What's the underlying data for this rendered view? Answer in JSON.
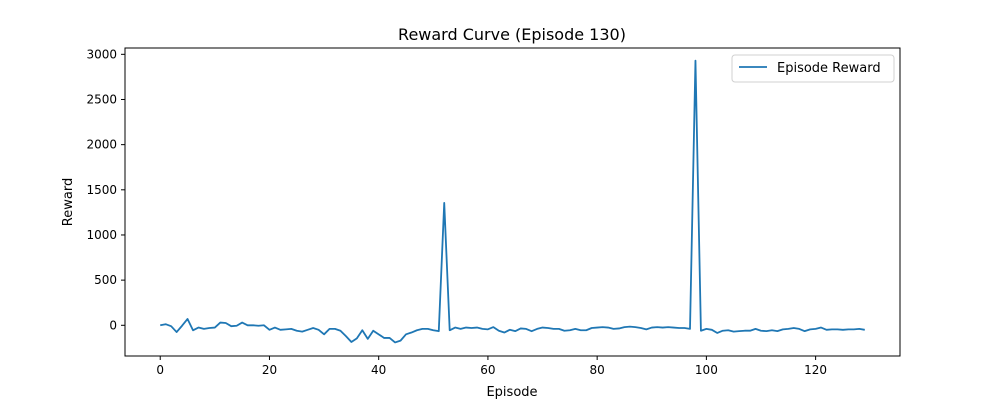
{
  "chart_data": {
    "type": "line",
    "title": "Reward Curve (Episode 130)",
    "xlabel": "Episode",
    "ylabel": "Reward",
    "xlim": [
      -6.45,
      135.45
    ],
    "ylim": [
      -340,
      3070
    ],
    "xticks": [
      0,
      20,
      40,
      60,
      80,
      100,
      120
    ],
    "yticks": [
      0,
      500,
      1000,
      1500,
      2000,
      2500,
      3000
    ],
    "grid": false,
    "legend_position": "top-right",
    "series": [
      {
        "name": "Episode Reward",
        "color": "#1f77b4",
        "x": [
          0,
          1,
          2,
          3,
          4,
          5,
          6,
          7,
          8,
          9,
          10,
          11,
          12,
          13,
          14,
          15,
          16,
          17,
          18,
          19,
          20,
          21,
          22,
          23,
          24,
          25,
          26,
          27,
          28,
          29,
          30,
          31,
          32,
          33,
          34,
          35,
          36,
          37,
          38,
          39,
          40,
          41,
          42,
          43,
          44,
          45,
          46,
          47,
          48,
          49,
          50,
          51,
          52,
          53,
          54,
          55,
          56,
          57,
          58,
          59,
          60,
          61,
          62,
          63,
          64,
          65,
          66,
          67,
          68,
          69,
          70,
          71,
          72,
          73,
          74,
          75,
          76,
          77,
          78,
          79,
          80,
          81,
          82,
          83,
          84,
          85,
          86,
          87,
          88,
          89,
          90,
          91,
          92,
          93,
          94,
          95,
          96,
          97,
          98,
          99,
          100,
          101,
          102,
          103,
          104,
          105,
          106,
          107,
          108,
          109,
          110,
          111,
          112,
          113,
          114,
          115,
          116,
          117,
          118,
          119,
          120,
          121,
          122,
          123,
          124,
          125,
          126,
          127,
          128,
          129
        ],
        "values": [
          0,
          12,
          -10,
          -75,
          -5,
          70,
          -55,
          -25,
          -40,
          -30,
          -25,
          30,
          25,
          -10,
          -5,
          30,
          0,
          0,
          -5,
          0,
          -50,
          -25,
          -50,
          -45,
          -40,
          -60,
          -70,
          -50,
          -30,
          -50,
          -100,
          -40,
          -40,
          -60,
          -120,
          -185,
          -145,
          -55,
          -150,
          -60,
          -100,
          -140,
          -140,
          -190,
          -170,
          -100,
          -80,
          -55,
          -40,
          -40,
          -55,
          -65,
          1355,
          -55,
          -25,
          -40,
          -25,
          -30,
          -25,
          -40,
          -45,
          -20,
          -60,
          -80,
          -50,
          -65,
          -35,
          -40,
          -65,
          -40,
          -25,
          -30,
          -40,
          -40,
          -60,
          -55,
          -40,
          -55,
          -55,
          -30,
          -25,
          -20,
          -25,
          -40,
          -35,
          -20,
          -15,
          -20,
          -30,
          -45,
          -25,
          -20,
          -25,
          -20,
          -25,
          -30,
          -30,
          -40,
          2930,
          -60,
          -40,
          -50,
          -85,
          -60,
          -55,
          -70,
          -65,
          -60,
          -60,
          -40,
          -60,
          -65,
          -55,
          -65,
          -45,
          -40,
          -30,
          -40,
          -65,
          -45,
          -40,
          -25,
          -50,
          -45,
          -45,
          -50,
          -45,
          -45,
          -40,
          -50
        ]
      }
    ]
  }
}
